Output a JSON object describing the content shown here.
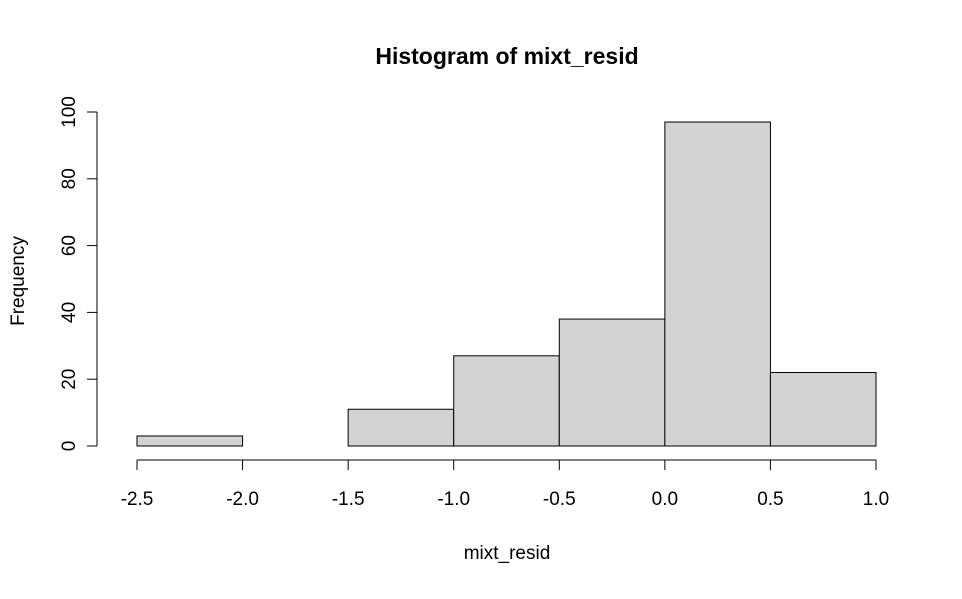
{
  "chart_data": {
    "type": "bar",
    "title": "Histogram of mixt_resid",
    "xlabel": "mixt_resid",
    "ylabel": "Frequency",
    "bins": [
      {
        "x0": -2.5,
        "x1": -2.0,
        "count": 3
      },
      {
        "x0": -2.0,
        "x1": -1.5,
        "count": 0
      },
      {
        "x0": -1.5,
        "x1": -1.0,
        "count": 11
      },
      {
        "x0": -1.0,
        "x1": -0.5,
        "count": 27
      },
      {
        "x0": -0.5,
        "x1": 0.0,
        "count": 38
      },
      {
        "x0": 0.0,
        "x1": 0.5,
        "count": 97
      },
      {
        "x0": 0.5,
        "x1": 1.0,
        "count": 22
      }
    ],
    "xlim": [
      -2.5,
      1.0
    ],
    "ylim": [
      0,
      100
    ],
    "xticks": [
      -2.5,
      -2.0,
      -1.5,
      -1.0,
      -0.5,
      0.0,
      0.5,
      1.0
    ],
    "xtick_labels": [
      "-2.5",
      "-2.0",
      "-1.5",
      "-1.0",
      "-0.5",
      "0.0",
      "0.5",
      "1.0"
    ],
    "yticks": [
      0,
      20,
      40,
      60,
      80,
      100
    ],
    "ytick_labels": [
      "0",
      "20",
      "40",
      "60",
      "80",
      "100"
    ],
    "grid": false,
    "colors": {
      "bar_fill": "#d3d3d3",
      "bar_stroke": "#000000",
      "axis": "#000000"
    }
  }
}
